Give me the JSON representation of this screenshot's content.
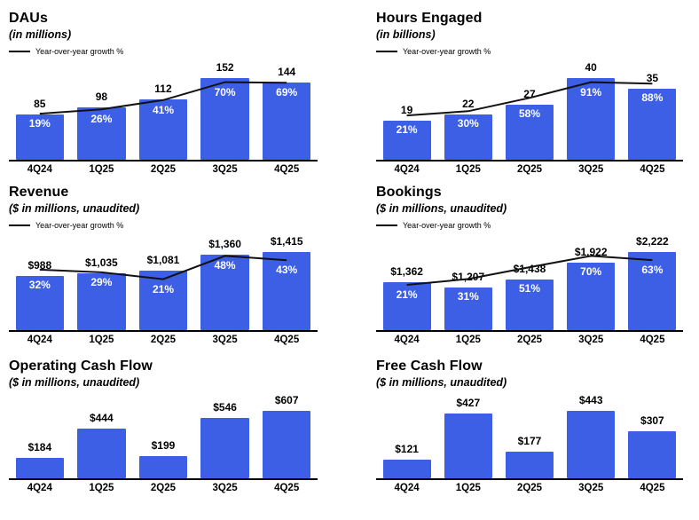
{
  "page": {
    "background": "#ffffff"
  },
  "colors": {
    "bar": "#3C5FE5",
    "line": "#111111",
    "growth_label_text": "#ffffff",
    "text": "#000000"
  },
  "chart_data": [
    {
      "type": "bar",
      "title": "DAUs",
      "subtitle": "(in millions)",
      "legend": "Year-over-year growth %",
      "categories": [
        "4Q24",
        "1Q25",
        "2Q25",
        "3Q25",
        "4Q25"
      ],
      "values": [
        85,
        98,
        112,
        152,
        144
      ],
      "value_labels": [
        "85",
        "98",
        "112",
        "152",
        "144"
      ],
      "growth_pct": [
        19,
        26,
        41,
        70,
        69
      ],
      "growth_labels": [
        "19%",
        "26%",
        "41%",
        "70%",
        "69%"
      ],
      "has_growth_line": true,
      "legend_position": "top-left",
      "grid": false
    },
    {
      "type": "bar",
      "title": "Hours Engaged",
      "subtitle": "(in billions)",
      "legend": "Year-over-year growth %",
      "categories": [
        "4Q24",
        "1Q25",
        "2Q25",
        "3Q25",
        "4Q25"
      ],
      "values": [
        19,
        22,
        27,
        40,
        35
      ],
      "value_labels": [
        "19",
        "22",
        "27",
        "40",
        "35"
      ],
      "growth_pct": [
        21,
        30,
        58,
        91,
        88
      ],
      "growth_labels": [
        "21%",
        "30%",
        "58%",
        "91%",
        "88%"
      ],
      "has_growth_line": true,
      "legend_position": "top-left",
      "grid": false
    },
    {
      "type": "bar",
      "title": "Revenue",
      "subtitle": "($ in millions, unaudited)",
      "legend": "Year-over-year growth %",
      "categories": [
        "4Q24",
        "1Q25",
        "2Q25",
        "3Q25",
        "4Q25"
      ],
      "values": [
        988,
        1035,
        1081,
        1360,
        1415
      ],
      "value_labels": [
        "$988",
        "$1,035",
        "$1,081",
        "$1,360",
        "$1,415"
      ],
      "growth_pct": [
        32,
        29,
        21,
        48,
        43
      ],
      "growth_labels": [
        "32%",
        "29%",
        "21%",
        "48%",
        "43%"
      ],
      "has_growth_line": true,
      "legend_position": "top-left",
      "grid": false
    },
    {
      "type": "bar",
      "title": "Bookings",
      "subtitle": "($ in millions, unaudited)",
      "legend": "Year-over-year growth %",
      "categories": [
        "4Q24",
        "1Q25",
        "2Q25",
        "3Q25",
        "4Q25"
      ],
      "values": [
        1362,
        1207,
        1438,
        1922,
        2222
      ],
      "value_labels": [
        "$1,362",
        "$1,207",
        "$1,438",
        "$1,922",
        "$2,222"
      ],
      "growth_pct": [
        21,
        31,
        51,
        70,
        63
      ],
      "growth_labels": [
        "21%",
        "31%",
        "51%",
        "70%",
        "63%"
      ],
      "has_growth_line": true,
      "legend_position": "top-left",
      "grid": false
    },
    {
      "type": "bar",
      "title": "Operating Cash Flow",
      "subtitle": "($ in millions, unaudited)",
      "categories": [
        "4Q24",
        "1Q25",
        "2Q25",
        "3Q25",
        "4Q25"
      ],
      "values": [
        184,
        444,
        199,
        546,
        607
      ],
      "value_labels": [
        "$184",
        "$444",
        "$199",
        "$546",
        "$607"
      ],
      "has_growth_line": false,
      "grid": false
    },
    {
      "type": "bar",
      "title": "Free Cash Flow",
      "subtitle": "($ in millions, unaudited)",
      "categories": [
        "4Q24",
        "1Q25",
        "2Q25",
        "3Q25",
        "4Q25"
      ],
      "values": [
        121,
        427,
        177,
        443,
        307
      ],
      "value_labels": [
        "$121",
        "$427",
        "$177",
        "$443",
        "$307"
      ],
      "has_growth_line": false,
      "grid": false
    }
  ]
}
